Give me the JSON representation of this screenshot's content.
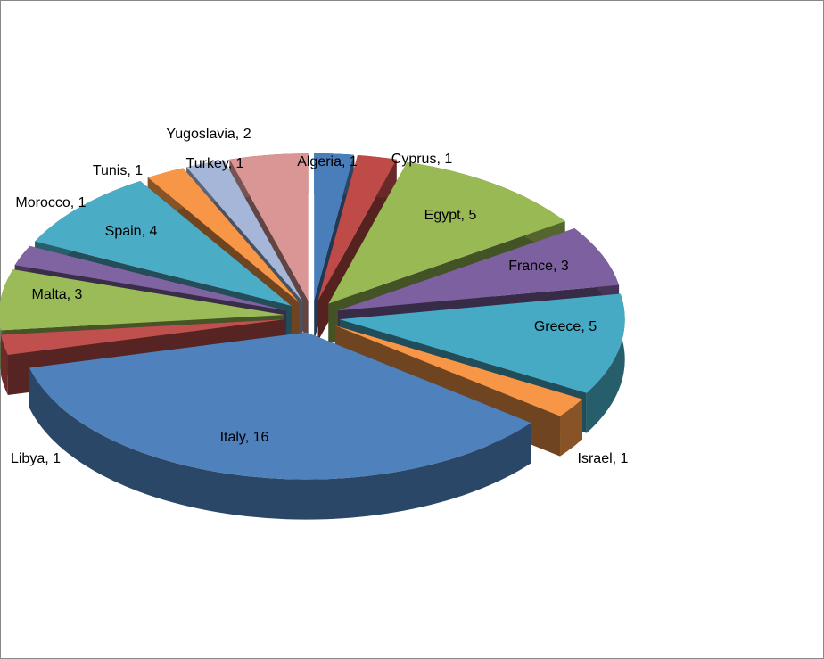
{
  "chart_data": {
    "type": "pie3d",
    "labels": [
      "Algeria, 1",
      "Cyprus, 1",
      "Egypt, 5",
      "France, 3",
      "Greece, 5",
      "Israel, 1",
      "Italy, 16",
      "Libya, 1",
      "Malta, 3",
      "Morocco, 1",
      "Spain, 4",
      "Tunis, 1",
      "Turkey, 1",
      "Yugoslavia, 2"
    ],
    "values": [
      1,
      1,
      5,
      3,
      5,
      1,
      16,
      1,
      3,
      1,
      4,
      1,
      1,
      2
    ],
    "colors": [
      "#4a7ebb",
      "#be4b48",
      "#98b954",
      "#7d60a0",
      "#46aac5",
      "#f79646",
      "#4f81bd",
      "#c0504d",
      "#9bbb59",
      "#8064a2",
      "#4bacc6",
      "#f79646",
      "#a5b6d9",
      "#d99694"
    ]
  }
}
